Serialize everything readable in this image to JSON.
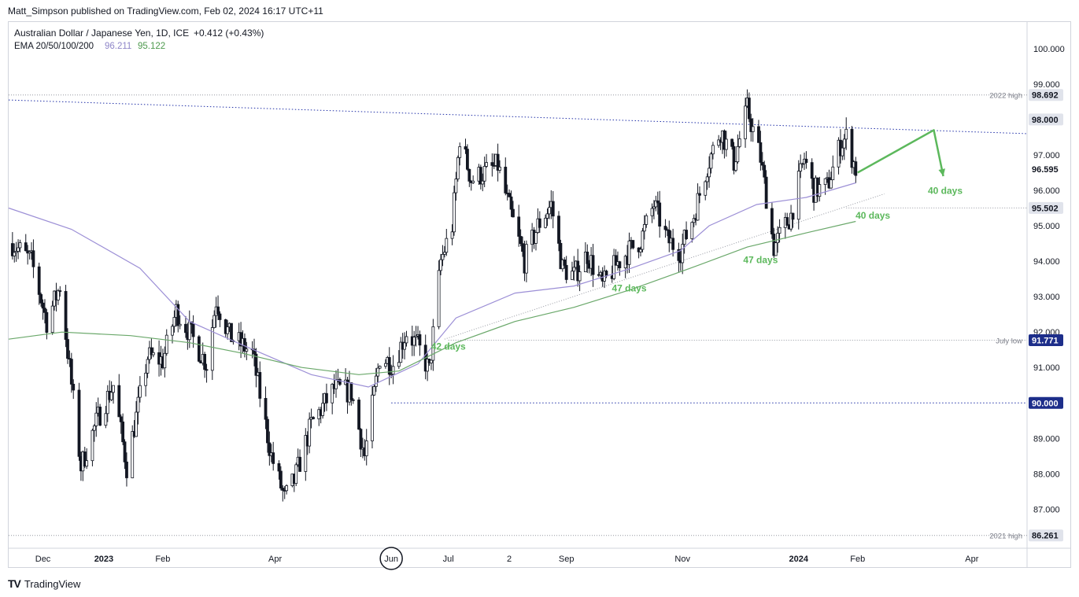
{
  "header": {
    "published_by": "Matt_Simpson published on TradingView.com, Feb 02, 2024 16:17 UTC+11"
  },
  "footer": {
    "logo_mark": "TV",
    "logo_text": "TradingView"
  },
  "colors": {
    "ema_50": "#9c8fd6",
    "ema_200": "#6aa86a",
    "annotation_green": "#5cb85c",
    "dotted_blue": "#2130a8",
    "price_tag_dark": "#1d2e8a",
    "price_tag_grey": "#787b86"
  },
  "chart_data": {
    "type": "candlestick",
    "title": "Australian Dollar / Japanese Yen, 1D, ICE",
    "change": "+0.412 (+0.43%)",
    "indicator": {
      "label": "EMA 20/50/100/200",
      "value_1": "96.211",
      "value_2": "95.122"
    },
    "ylim": [
      85.9,
      100.75
    ],
    "y_ticks": [
      "100.000",
      "99.000",
      "98.000",
      "97.000",
      "96.000",
      "95.000",
      "94.000",
      "93.000",
      "92.000",
      "91.000",
      "90.000",
      "89.000",
      "88.000",
      "87.000"
    ],
    "x_ticks": [
      "Dec",
      "2023",
      "Feb",
      "Apr",
      "Jun",
      "Jul",
      "2",
      "Sep",
      "Nov",
      "2024",
      "Feb",
      "Apr"
    ],
    "x_range": [
      "2022-11-12",
      "2024-04-30"
    ],
    "price_tags": [
      {
        "value": 98.692,
        "label": "98.692",
        "style": "grey"
      },
      {
        "value": 98.0,
        "label": "98.000",
        "style": "grey"
      },
      {
        "value": 96.595,
        "label": "96.595",
        "style": "plain"
      },
      {
        "value": 95.502,
        "label": "95.502",
        "style": "grey"
      },
      {
        "value": 91.771,
        "label": "91.771",
        "style": "dark"
      },
      {
        "value": 90.0,
        "label": "90.000",
        "style": "dark"
      },
      {
        "value": 86.261,
        "label": "86.261",
        "style": "grey"
      }
    ],
    "level_labels": [
      {
        "text": "2022 high",
        "value": 98.692
      },
      {
        "text": "July low",
        "value": 91.771
      },
      {
        "text": "2021 high",
        "value": 86.261
      }
    ],
    "horizontal_levels": [
      {
        "value": 98.692,
        "from": "2022-11-12",
        "style": "dotted-grey"
      },
      {
        "value": 95.502,
        "from": "2024-01-26",
        "style": "dotted-grey"
      },
      {
        "value": 91.771,
        "from": "2023-07-01",
        "style": "dotted-grey"
      },
      {
        "value": 90.0,
        "from": "2023-06-01",
        "style": "dotted-blue"
      },
      {
        "value": 86.261,
        "from": "2022-11-12",
        "style": "dotted-grey"
      }
    ],
    "trendlines": [
      {
        "name": "upper",
        "from": {
          "x": "2022-11-12",
          "y": 98.55
        },
        "to": {
          "x": "2024-04-30",
          "y": 97.6
        },
        "style": "dotted-blue"
      },
      {
        "name": "lower",
        "from": {
          "x": "2023-06-29",
          "y": 91.8
        },
        "to": {
          "x": "2024-02-15",
          "y": 95.9
        },
        "style": "dotted-grey"
      }
    ],
    "projection_arrow": [
      {
        "x": "2024-02-01",
        "y": 96.5
      },
      {
        "x": "2024-03-12",
        "y": 97.7
      },
      {
        "x": "2024-03-17",
        "y": 96.4
      }
    ],
    "annotations": [
      {
        "text": "42 days",
        "x": "2023-07-01",
        "y": 91.5
      },
      {
        "text": "47 days",
        "x": "2023-10-04",
        "y": 93.15
      },
      {
        "text": "47 days",
        "x": "2023-12-12",
        "y": 93.95
      },
      {
        "text": "40 days",
        "x": "2024-02-09",
        "y": 95.2
      },
      {
        "text": "40 days",
        "x": "2024-03-18",
        "y": 95.9
      }
    ],
    "ema_50": [
      [
        "2022-11-12",
        95.5
      ],
      [
        "2022-12-15",
        94.9
      ],
      [
        "2023-01-20",
        93.8
      ],
      [
        "2023-02-15",
        92.3
      ],
      [
        "2023-03-10",
        91.75
      ],
      [
        "2023-03-25",
        91.4
      ],
      [
        "2023-04-20",
        90.8
      ],
      [
        "2023-05-20",
        90.45
      ],
      [
        "2023-06-15",
        91.1
      ],
      [
        "2023-07-05",
        92.4
      ],
      [
        "2023-08-05",
        93.1
      ],
      [
        "2023-09-05",
        93.3
      ],
      [
        "2023-10-05",
        93.8
      ],
      [
        "2023-10-31",
        94.3
      ],
      [
        "2023-11-15",
        95.0
      ],
      [
        "2023-12-10",
        95.6
      ],
      [
        "2024-01-05",
        95.8
      ],
      [
        "2024-01-31",
        96.211
      ]
    ],
    "ema_200": [
      [
        "2022-11-12",
        91.8
      ],
      [
        "2022-12-10",
        92.0
      ],
      [
        "2023-01-15",
        91.9
      ],
      [
        "2023-02-15",
        91.7
      ],
      [
        "2023-03-15",
        91.4
      ],
      [
        "2023-04-15",
        91.0
      ],
      [
        "2023-05-15",
        90.8
      ],
      [
        "2023-06-05",
        90.9
      ],
      [
        "2023-07-05",
        91.7
      ],
      [
        "2023-08-05",
        92.3
      ],
      [
        "2023-09-05",
        92.7
      ],
      [
        "2023-10-05",
        93.2
      ],
      [
        "2023-11-05",
        93.8
      ],
      [
        "2023-12-05",
        94.4
      ],
      [
        "2024-01-05",
        94.8
      ],
      [
        "2024-01-31",
        95.122
      ]
    ],
    "price_path": [
      [
        "2022-11-14",
        94.5
      ],
      [
        "2022-11-24",
        94.0
      ],
      [
        "2022-12-02",
        92.3
      ],
      [
        "2022-12-09",
        93.3
      ],
      [
        "2022-12-20",
        88.2
      ],
      [
        "2022-12-29",
        89.6
      ],
      [
        "2023-01-06",
        90.5
      ],
      [
        "2023-01-13",
        88.2
      ],
      [
        "2023-01-24",
        91.3
      ],
      [
        "2023-02-01",
        91.2
      ],
      [
        "2023-02-08",
        92.6
      ],
      [
        "2023-02-15",
        92.0
      ],
      [
        "2023-02-24",
        91.1
      ],
      [
        "2023-03-01",
        92.9
      ],
      [
        "2023-03-08",
        91.9
      ],
      [
        "2023-03-20",
        91.4
      ],
      [
        "2023-03-30",
        88.5
      ],
      [
        "2023-04-06",
        87.3
      ],
      [
        "2023-04-11",
        87.8
      ],
      [
        "2023-04-20",
        89.4
      ],
      [
        "2023-05-02",
        90.4
      ],
      [
        "2023-05-11",
        90.3
      ],
      [
        "2023-05-18",
        88.5
      ],
      [
        "2023-05-26",
        91.3
      ],
      [
        "2023-06-02",
        91.1
      ],
      [
        "2023-06-09",
        92.0
      ],
      [
        "2023-06-15",
        91.6
      ],
      [
        "2023-06-21",
        90.9
      ],
      [
        "2023-06-27",
        94.0
      ],
      [
        "2023-07-03",
        95.0
      ],
      [
        "2023-07-07",
        97.5
      ],
      [
        "2023-07-13",
        96.3
      ],
      [
        "2023-07-20",
        96.5
      ],
      [
        "2023-07-27",
        96.7
      ],
      [
        "2023-08-03",
        95.3
      ],
      [
        "2023-08-10",
        94.0
      ],
      [
        "2023-08-17",
        95.0
      ],
      [
        "2023-08-24",
        95.6
      ],
      [
        "2023-08-30",
        93.8
      ],
      [
        "2023-09-05",
        93.6
      ],
      [
        "2023-09-12",
        94.2
      ],
      [
        "2023-09-20",
        93.3
      ],
      [
        "2023-09-27",
        93.9
      ],
      [
        "2023-10-04",
        94.3
      ],
      [
        "2023-10-10",
        94.6
      ],
      [
        "2023-10-17",
        95.6
      ],
      [
        "2023-10-24",
        94.6
      ],
      [
        "2023-10-31",
        94.3
      ],
      [
        "2023-11-07",
        95.3
      ],
      [
        "2023-11-14",
        96.7
      ],
      [
        "2023-11-21",
        97.7
      ],
      [
        "2023-11-28",
        96.8
      ],
      [
        "2023-12-05",
        98.3
      ],
      [
        "2023-12-12",
        96.9
      ],
      [
        "2023-12-19",
        94.4
      ],
      [
        "2023-12-28",
        95.3
      ],
      [
        "2024-01-04",
        96.9
      ],
      [
        "2024-01-09",
        96.0
      ],
      [
        "2024-01-16",
        96.1
      ],
      [
        "2024-01-23",
        97.3
      ],
      [
        "2024-01-26",
        97.5
      ],
      [
        "2024-01-31",
        96.6
      ]
    ]
  }
}
